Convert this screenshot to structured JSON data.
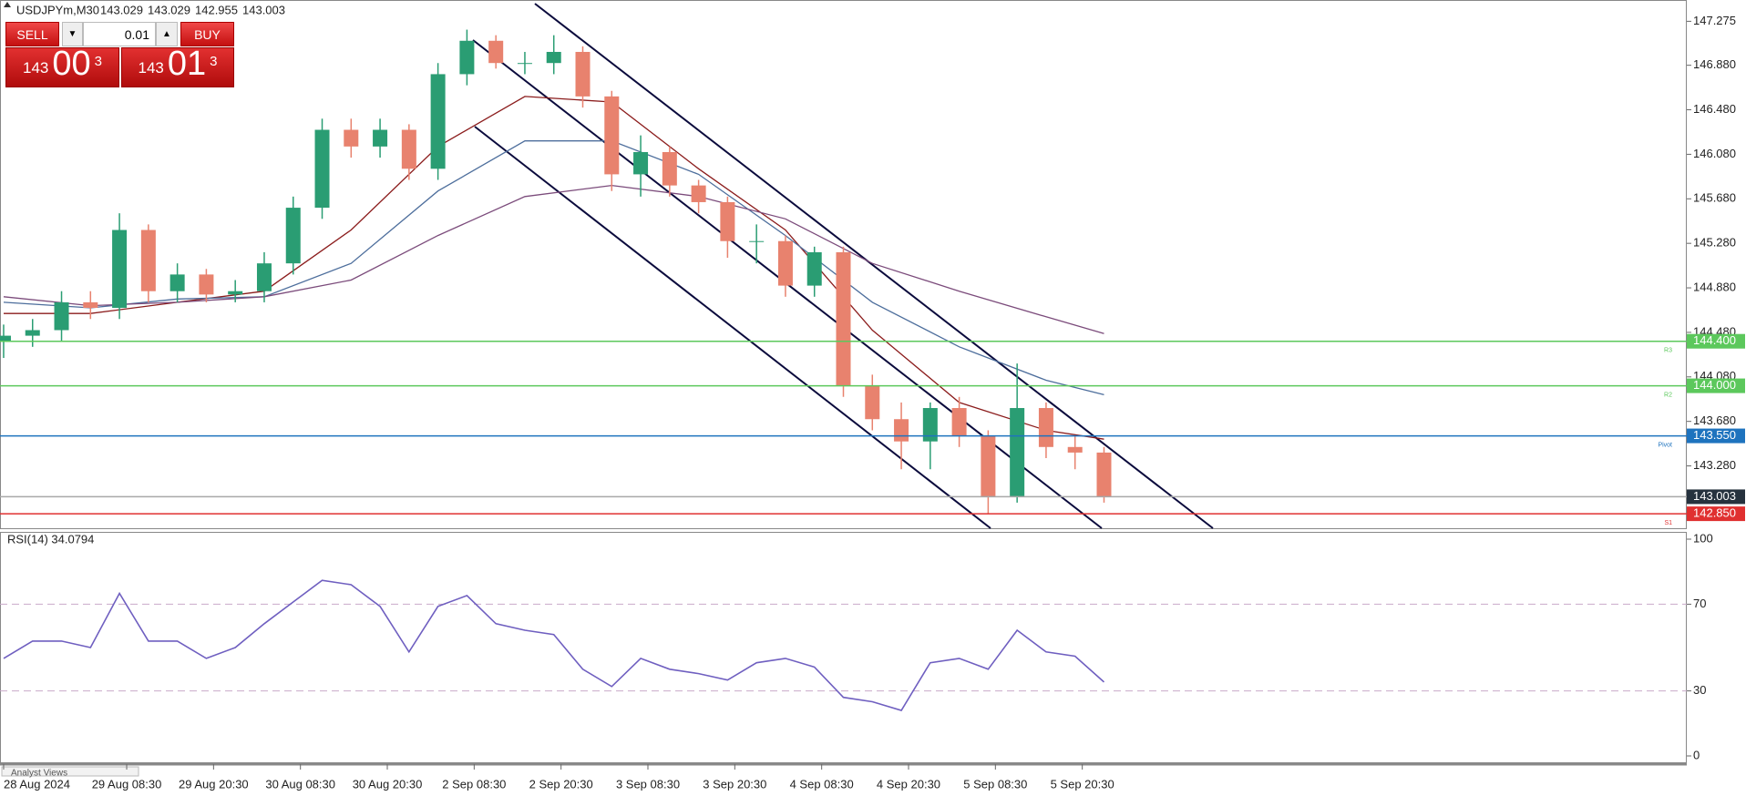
{
  "header": {
    "symbol": "USDJPYm,M30",
    "quote": [
      143.029,
      143.029,
      142.955,
      143.003
    ]
  },
  "trade_panel": {
    "sell": "SELL",
    "buy": "BUY",
    "volume": "0.01",
    "bid": {
      "big": "143",
      "main": "00",
      "sup": "3"
    },
    "ask": {
      "big": "143",
      "main": "01",
      "sup": "3"
    }
  },
  "footer": {
    "tab": "Analyst Views"
  },
  "chart_data": [
    {
      "type": "candlestick",
      "up_color": "#2a9d73",
      "down_color": "#e8826e",
      "x": [
        0,
        8,
        16,
        24,
        32,
        40,
        48,
        56,
        64,
        72,
        80,
        88,
        96,
        104,
        112,
        120,
        128,
        136,
        144,
        152,
        160,
        168,
        176,
        184,
        192,
        200,
        208,
        216,
        224,
        232,
        240,
        248,
        256,
        264,
        272,
        280,
        288,
        296,
        304
      ],
      "open": [
        144.4,
        144.45,
        144.5,
        144.75,
        144.7,
        145.4,
        144.85,
        145.0,
        144.82,
        144.85,
        145.1,
        145.6,
        146.3,
        146.15,
        146.3,
        145.95,
        146.8,
        147.1,
        146.9,
        146.9,
        147.0,
        146.6,
        145.9,
        146.1,
        145.8,
        145.65,
        145.3,
        145.3,
        144.9,
        145.2,
        144.0,
        143.7,
        143.5,
        143.8,
        143.55,
        143.0,
        143.8,
        143.45,
        143.4
      ],
      "high": [
        144.55,
        144.6,
        144.85,
        144.85,
        145.55,
        145.45,
        145.1,
        145.05,
        144.95,
        145.2,
        145.7,
        146.4,
        146.4,
        146.4,
        146.35,
        146.9,
        147.2,
        147.15,
        147.0,
        147.15,
        147.05,
        146.65,
        146.25,
        146.15,
        145.85,
        145.7,
        145.45,
        145.35,
        145.25,
        145.25,
        144.1,
        143.85,
        143.85,
        143.9,
        143.6,
        144.2,
        143.85,
        143.55,
        143.45
      ],
      "low": [
        144.25,
        144.35,
        144.4,
        144.6,
        144.6,
        144.75,
        144.75,
        144.75,
        144.75,
        144.75,
        145.0,
        145.5,
        146.05,
        146.05,
        145.85,
        145.85,
        146.7,
        146.85,
        146.8,
        146.8,
        146.5,
        145.75,
        145.7,
        145.7,
        145.55,
        145.15,
        145.1,
        144.8,
        144.8,
        143.9,
        143.6,
        143.25,
        143.25,
        143.45,
        142.85,
        142.95,
        143.35,
        143.25,
        142.95
      ],
      "close": [
        144.45,
        144.5,
        144.75,
        144.7,
        145.4,
        144.85,
        145.0,
        144.82,
        144.85,
        145.1,
        145.6,
        146.3,
        146.15,
        146.3,
        145.95,
        146.8,
        147.1,
        146.9,
        146.9,
        147.0,
        146.6,
        145.9,
        146.1,
        145.8,
        145.65,
        145.3,
        145.3,
        144.9,
        145.2,
        144.0,
        143.7,
        143.5,
        143.8,
        143.55,
        143.0,
        143.8,
        143.45,
        143.4,
        143.003
      ],
      "series": [
        {
          "color": "#8b1c1c",
          "x": [
            0,
            24,
            48,
            72,
            96,
            120,
            144,
            168,
            192,
            216,
            240,
            264,
            288,
            304
          ],
          "values": [
            144.65,
            144.65,
            144.75,
            144.85,
            145.4,
            146.15,
            146.6,
            146.55,
            145.95,
            145.4,
            144.5,
            143.85,
            143.6,
            143.52
          ]
        },
        {
          "color": "#4d6e9c",
          "x": [
            0,
            24,
            48,
            72,
            96,
            120,
            144,
            168,
            192,
            216,
            240,
            264,
            288,
            304
          ],
          "values": [
            144.75,
            144.7,
            144.78,
            144.8,
            145.1,
            145.75,
            146.2,
            146.2,
            145.9,
            145.35,
            144.75,
            144.35,
            144.05,
            143.92
          ]
        },
        {
          "color": "#7b4b7b",
          "x": [
            0,
            24,
            48,
            72,
            96,
            120,
            144,
            168,
            192,
            216,
            240,
            264,
            288,
            304
          ],
          "values": [
            144.8,
            144.72,
            144.75,
            144.8,
            144.95,
            145.35,
            145.7,
            145.8,
            145.7,
            145.5,
            145.1,
            144.85,
            144.62,
            144.47
          ]
        }
      ],
      "levels": [
        {
          "name": "R3",
          "value": 144.4,
          "label": "144.400",
          "color": "#5cc85c"
        },
        {
          "name": "R2",
          "value": 144.0,
          "label": "144.000",
          "color": "#5cc85c"
        },
        {
          "name": "Pivot",
          "value": 143.55,
          "label": "143.550",
          "color": "#1e73be"
        },
        {
          "value": 143.003,
          "color": "#a8a8a8",
          "box": "#26323e"
        },
        {
          "name": "S1",
          "value": 142.85,
          "label": "142.850",
          "color": "#e03030"
        }
      ],
      "ylim": [
        142.72,
        147.45
      ],
      "yticks": [
        {
          "value": 143.28,
          "label": "143.280"
        },
        {
          "value": 143.68,
          "label": "143.680"
        },
        {
          "value": 144.08,
          "label": "144.080"
        },
        {
          "value": 144.48,
          "label": "144.480"
        },
        {
          "value": 144.88,
          "label": "144.880"
        },
        {
          "value": 145.28,
          "label": "145.280"
        },
        {
          "value": 145.68,
          "label": "145.680"
        },
        {
          "value": 146.08,
          "label": "146.080"
        },
        {
          "value": 146.48,
          "label": "146.480"
        },
        {
          "value": 146.88,
          "label": "146.880"
        },
        147.275
      ],
      "xlim": [
        -1,
        465
      ],
      "xticks": [
        {
          "value": 0,
          "label": "28 Aug 2024"
        },
        {
          "value": 34,
          "label": "29 Aug 08:30"
        },
        {
          "value": 58,
          "label": "29 Aug 20:30"
        },
        {
          "value": 82,
          "label": "30 Aug 08:30"
        },
        {
          "value": 106,
          "label": "30 Aug 20:30"
        },
        {
          "value": 130,
          "label": "2 Sep 08:30"
        },
        {
          "value": 154,
          "label": "2 Sep 20:30"
        },
        {
          "value": 178,
          "label": "3 Sep 08:30"
        },
        {
          "value": 202,
          "label": "3 Sep 20:30"
        },
        {
          "value": 226,
          "label": "4 Sep 08:30"
        },
        {
          "value": 250,
          "label": "4 Sep 20:30"
        },
        {
          "value": 274,
          "label": "5 Sep 08:30"
        },
        {
          "value": 298,
          "label": "5 Sep 20:30"
        }
      ]
    },
    {
      "type": "line",
      "title": "RSI(14) 34.0794",
      "series": [
        {
          "color": "#6f5fc0",
          "x": [
            0,
            8,
            16,
            24,
            32,
            40,
            48,
            56,
            64,
            72,
            80,
            88,
            96,
            104,
            112,
            120,
            128,
            136,
            144,
            152,
            160,
            168,
            176,
            184,
            192,
            200,
            208,
            216,
            224,
            232,
            240,
            248,
            256,
            264,
            272,
            280,
            288,
            296,
            304
          ],
          "values": [
            45,
            53,
            53,
            50,
            75,
            53,
            53,
            45,
            50,
            61,
            71,
            81,
            79,
            69,
            48,
            69,
            74,
            61,
            58,
            56,
            40,
            32,
            45,
            40,
            38,
            35,
            43,
            45,
            41,
            27,
            25,
            21,
            43,
            45,
            40,
            58,
            48,
            46,
            34.0794
          ]
        }
      ],
      "ylim": [
        0,
        100
      ],
      "yticks": [
        0,
        30,
        70,
        100
      ],
      "grid": "dashed",
      "xlim": [
        -1,
        465
      ]
    }
  ]
}
